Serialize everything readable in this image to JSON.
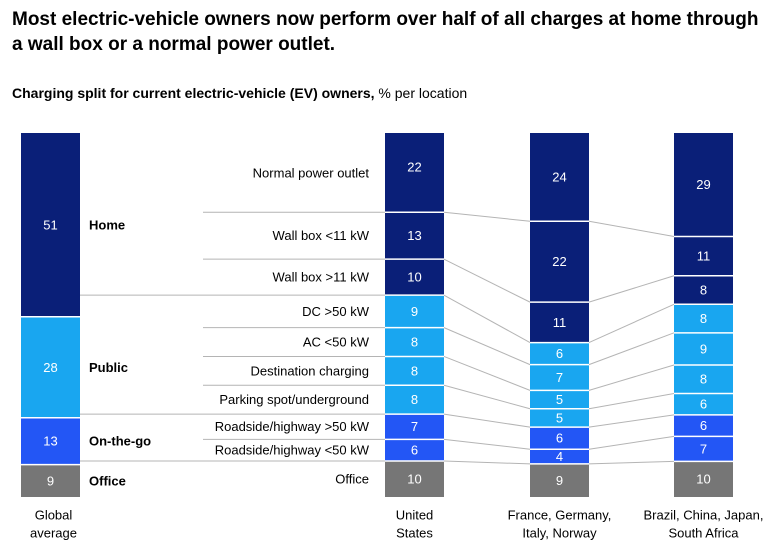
{
  "title": "Most electric-vehicle owners now perform over half of all charges at home through a wall box or a normal power outlet.",
  "subtitle_bold": "Charging split for current electric-vehicle (EV) owners,",
  "subtitle_rest": " % per location",
  "colors": {
    "home": "#0a1f78",
    "public": "#19a6f0",
    "onthego": "#2356f5",
    "office": "#767676",
    "divider": "#ffffff",
    "connector": "#b4b4b4"
  },
  "chart_data": {
    "type": "bar",
    "stacked": true,
    "unit": "% per location",
    "groups": [
      {
        "name": "Home",
        "subcategories": [
          "Normal power outlet",
          "Wall box <11 kW",
          "Wall box >11 kW"
        ]
      },
      {
        "name": "Public",
        "subcategories": [
          "DC >50 kW",
          "AC <50 kW",
          "Destination charging",
          "Parking spot/underground"
        ]
      },
      {
        "name": "On-the-go",
        "subcategories": [
          "Roadside/highway >50 kW",
          "Roadside/highway <50 kW"
        ]
      },
      {
        "name": "Office",
        "subcategories": [
          "Office"
        ]
      }
    ],
    "global_average": {
      "label_lines": [
        "Global",
        "average"
      ],
      "values": [
        51,
        28,
        13,
        9
      ]
    },
    "categories": [
      "Normal power outlet",
      "Wall box <11 kW",
      "Wall box >11 kW",
      "DC >50 kW",
      "AC <50 kW",
      "Destination charging",
      "Parking spot/underground",
      "Roadside/highway >50 kW",
      "Roadside/highway <50 kW",
      "Office"
    ],
    "category_groups": [
      "home",
      "home",
      "home",
      "public",
      "public",
      "public",
      "public",
      "onthego",
      "onthego",
      "office"
    ],
    "series": [
      {
        "name": "United States",
        "label_lines": [
          "United",
          "States"
        ],
        "values": [
          22,
          13,
          10,
          9,
          8,
          8,
          8,
          7,
          6,
          10
        ]
      },
      {
        "name": "France, Germany, Italy, Norway",
        "label_lines": [
          "France, Germany,",
          "Italy, Norway"
        ],
        "values": [
          24,
          22,
          11,
          6,
          7,
          5,
          5,
          6,
          4,
          9
        ]
      },
      {
        "name": "Brazil, China, Japan, South Africa",
        "label_lines": [
          "Brazil, China, Japan,",
          "South Africa"
        ],
        "values": [
          29,
          11,
          8,
          8,
          9,
          8,
          6,
          6,
          7,
          10
        ]
      }
    ]
  }
}
